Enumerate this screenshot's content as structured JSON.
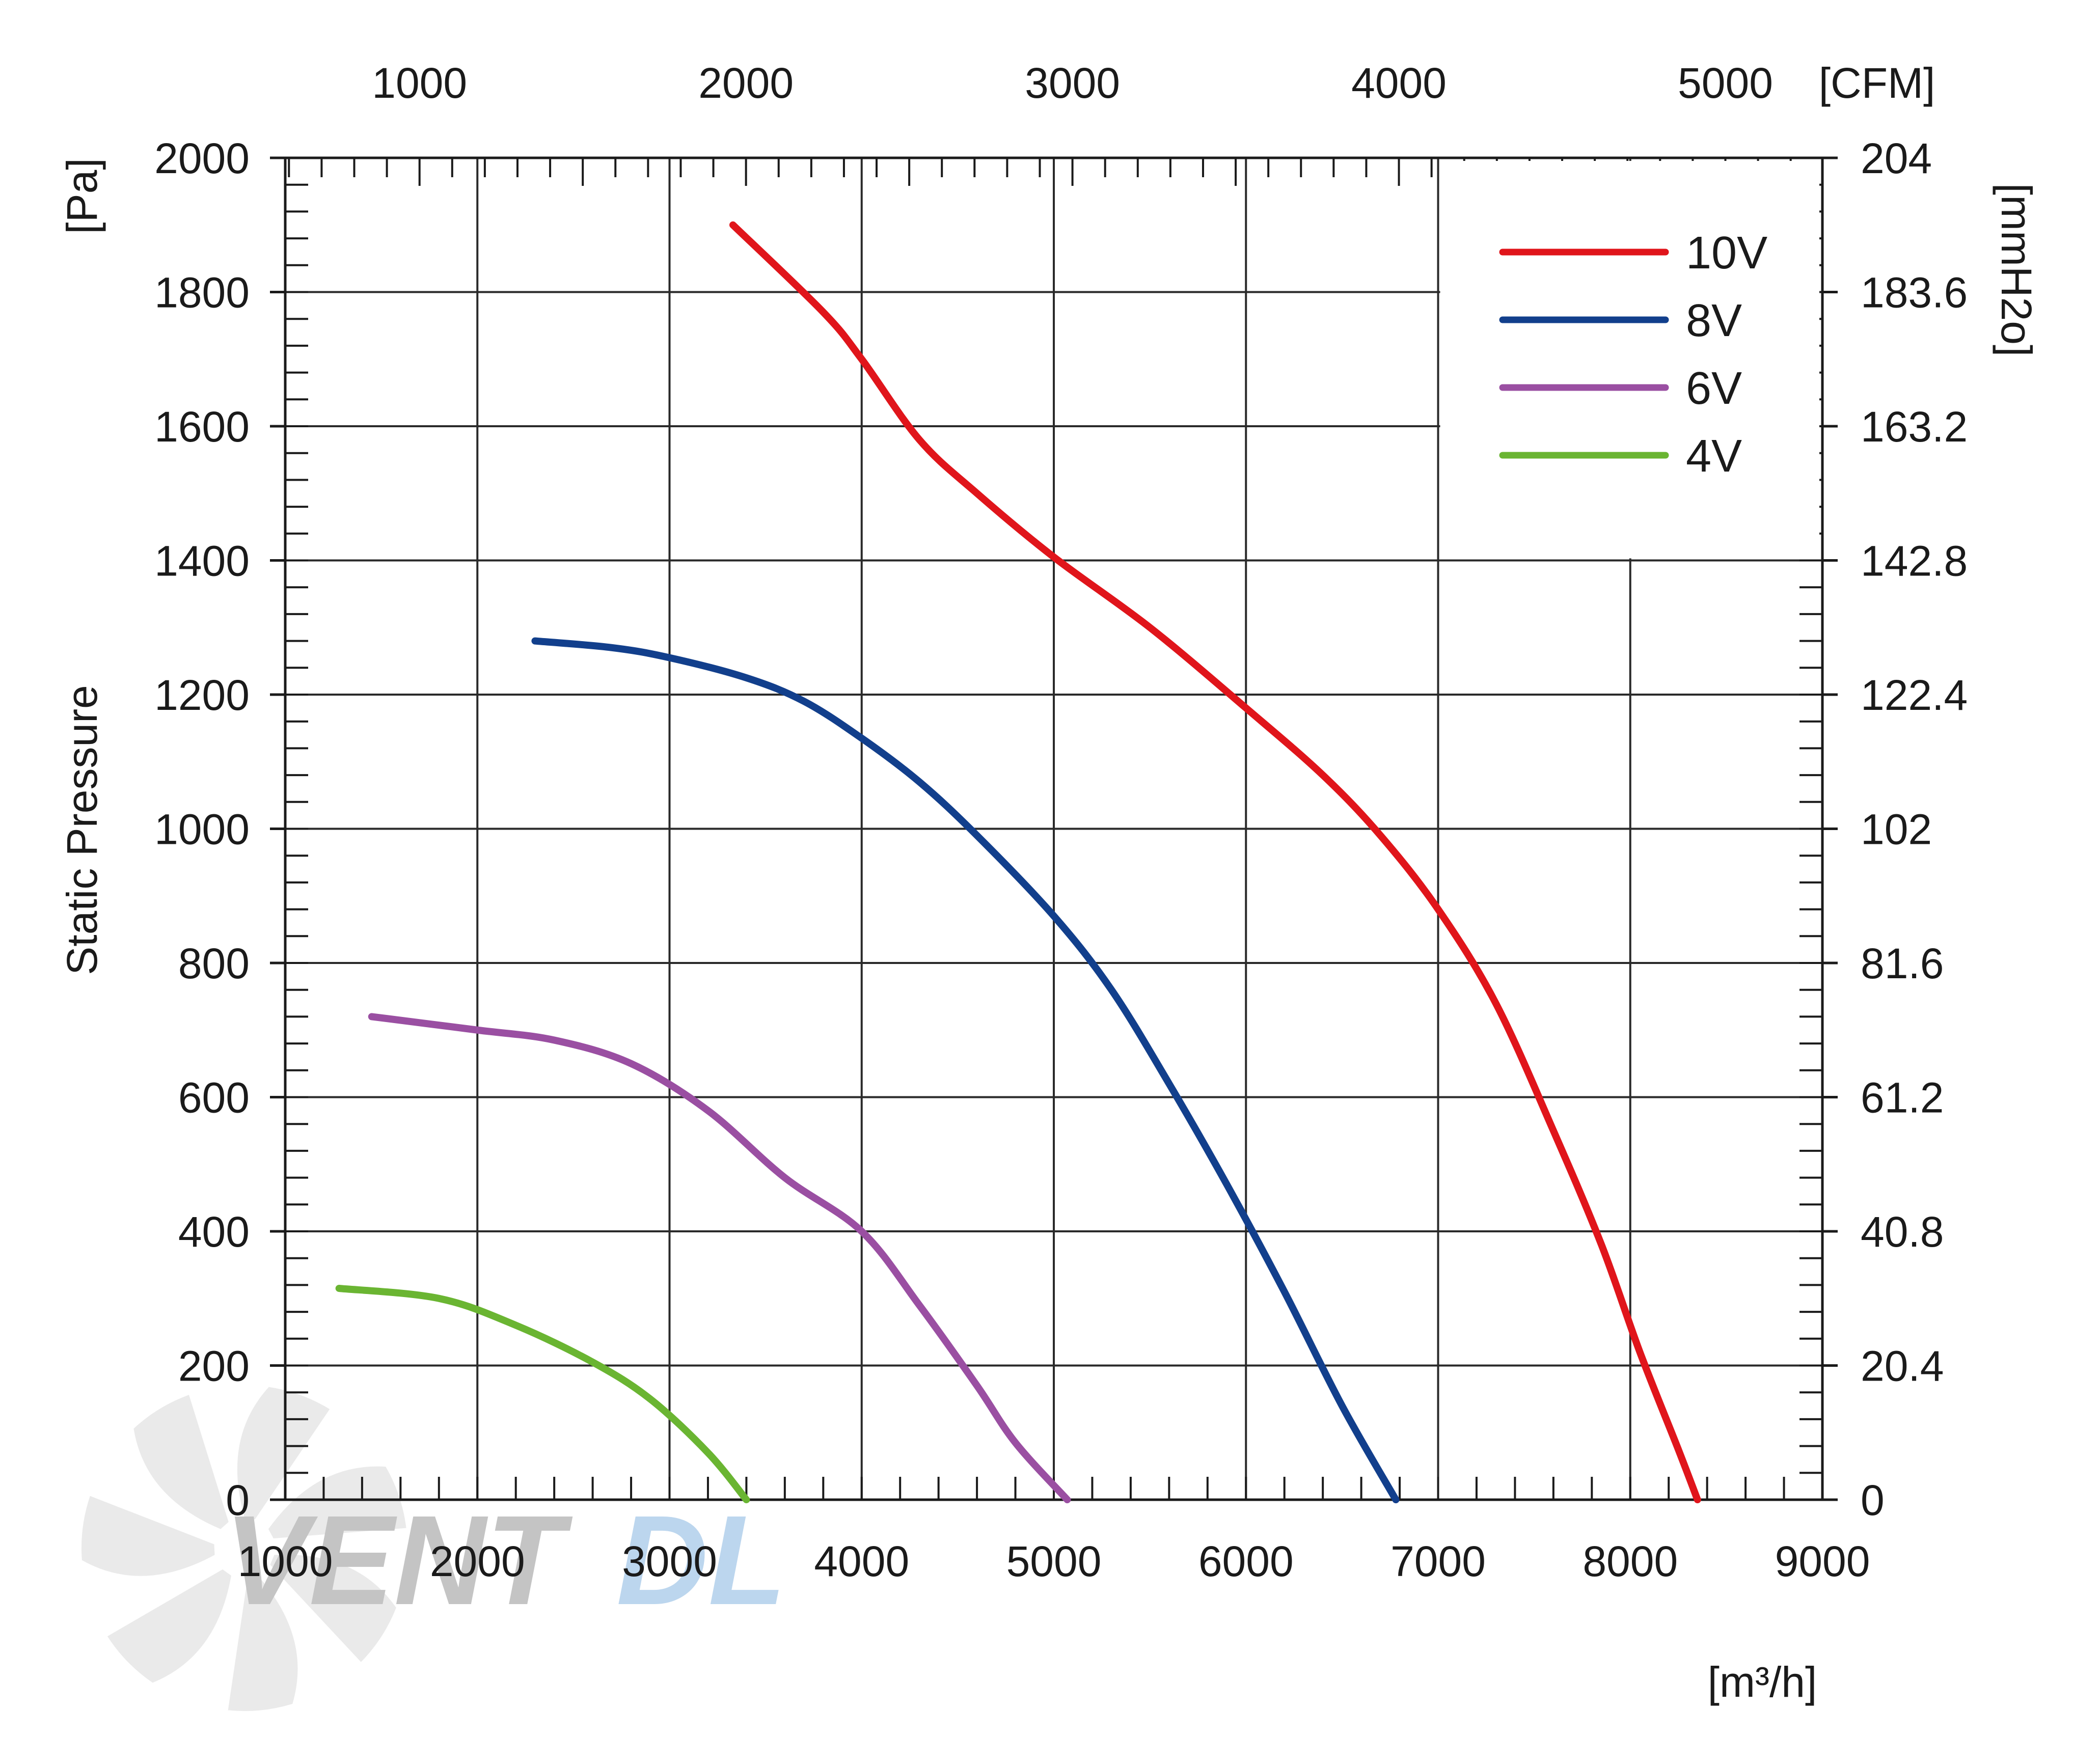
{
  "chart_data": {
    "type": "line",
    "title": "",
    "ylabel": "Static Pressure",
    "x_axis": {
      "unit": "[m³/h]",
      "range": [
        1000,
        9000
      ],
      "ticks": [
        1000,
        2000,
        3000,
        4000,
        5000,
        6000,
        7000,
        8000,
        9000
      ],
      "tick_labels": [
        "1000",
        "2000",
        "3000",
        "4000",
        "5000",
        "6000",
        "7000",
        "8000",
        "9000"
      ]
    },
    "x2_axis": {
      "unit": "[CFM]",
      "ticks": [
        1000,
        2000,
        3000,
        4000,
        5000
      ],
      "tick_labels": [
        "1000",
        "2000",
        "3000",
        "4000",
        "5000"
      ]
    },
    "y_axis": {
      "unit": "[Pa]",
      "range": [
        0,
        2000
      ],
      "ticks": [
        0,
        200,
        400,
        600,
        800,
        1000,
        1200,
        1400,
        1600,
        1800,
        2000
      ],
      "tick_labels": [
        "0",
        "200",
        "400",
        "600",
        "800",
        "1000",
        "1200",
        "1400",
        "1600",
        "1800",
        "2000"
      ]
    },
    "y2_axis": {
      "unit": "[mmH2o]",
      "ticks": [
        0,
        200,
        400,
        600,
        800,
        1000,
        1200,
        1400,
        1600,
        1800,
        2000
      ],
      "tick_labels": [
        "0",
        "20.4",
        "40.8",
        "61.2",
        "81.6",
        "102",
        "122.4",
        "142.8",
        "163.2",
        "183.6",
        "204"
      ]
    },
    "grid": true,
    "legend_position": "top-right",
    "series": [
      {
        "name": "10V",
        "color": "#e0151b",
        "points": [
          [
            3330,
            1900
          ],
          [
            3800,
            1770
          ],
          [
            4000,
            1700
          ],
          [
            4300,
            1580
          ],
          [
            4600,
            1500
          ],
          [
            5000,
            1405
          ],
          [
            5500,
            1300
          ],
          [
            6000,
            1180
          ],
          [
            6400,
            1080
          ],
          [
            6700,
            990
          ],
          [
            7000,
            880
          ],
          [
            7300,
            740
          ],
          [
            7600,
            550
          ],
          [
            7850,
            380
          ],
          [
            8050,
            220
          ],
          [
            8250,
            75
          ],
          [
            8350,
            0
          ]
        ]
      },
      {
        "name": "8V",
        "color": "#123f8c",
        "points": [
          [
            2300,
            1280
          ],
          [
            2700,
            1270
          ],
          [
            3000,
            1255
          ],
          [
            3400,
            1225
          ],
          [
            3700,
            1190
          ],
          [
            4000,
            1135
          ],
          [
            4300,
            1070
          ],
          [
            4600,
            990
          ],
          [
            5000,
            870
          ],
          [
            5300,
            760
          ],
          [
            5600,
            620
          ],
          [
            5900,
            470
          ],
          [
            6200,
            310
          ],
          [
            6500,
            140
          ],
          [
            6780,
            0
          ]
        ]
      },
      {
        "name": "6V",
        "color": "#9a4fa2",
        "points": [
          [
            1450,
            720
          ],
          [
            2000,
            700
          ],
          [
            2400,
            685
          ],
          [
            2800,
            650
          ],
          [
            3200,
            580
          ],
          [
            3600,
            480
          ],
          [
            4000,
            400
          ],
          [
            4300,
            290
          ],
          [
            4600,
            170
          ],
          [
            4800,
            85
          ],
          [
            5070,
            0
          ]
        ]
      },
      {
        "name": "4V",
        "color": "#6ab532",
        "points": [
          [
            1280,
            315
          ],
          [
            1800,
            300
          ],
          [
            2200,
            260
          ],
          [
            2600,
            205
          ],
          [
            2900,
            150
          ],
          [
            3200,
            70
          ],
          [
            3400,
            0
          ]
        ]
      }
    ],
    "watermark": {
      "text_dark": "VENT",
      "text_light": "DL"
    }
  }
}
